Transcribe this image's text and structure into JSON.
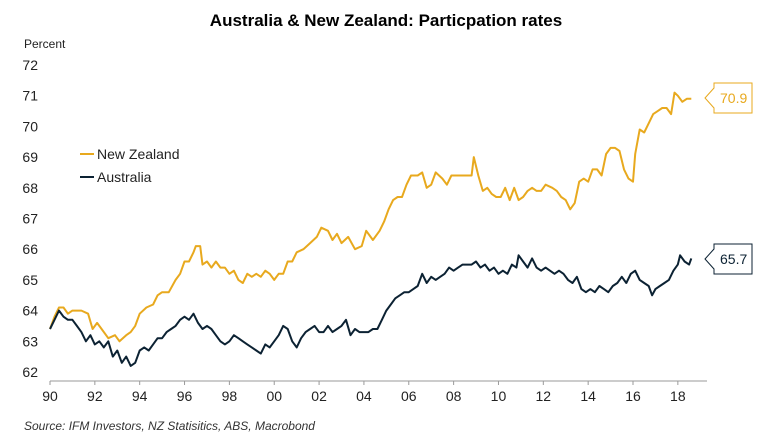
{
  "chart_data": {
    "type": "line",
    "title": "Australia & New Zealand: Particpation rates",
    "ylabel": "Percent",
    "xlabel": "",
    "ylim": [
      62,
      72
    ],
    "xlim": [
      1990,
      2019.3
    ],
    "yticks": [
      62,
      63,
      64,
      65,
      66,
      67,
      68,
      69,
      70,
      71,
      72
    ],
    "xticks": [
      {
        "value": 1990,
        "label": "90"
      },
      {
        "value": 1992,
        "label": "92"
      },
      {
        "value": 1994,
        "label": "94"
      },
      {
        "value": 1996,
        "label": "96"
      },
      {
        "value": 1998,
        "label": "98"
      },
      {
        "value": 2000,
        "label": "00"
      },
      {
        "value": 2002,
        "label": "02"
      },
      {
        "value": 2004,
        "label": "04"
      },
      {
        "value": 2006,
        "label": "06"
      },
      {
        "value": 2008,
        "label": "08"
      },
      {
        "value": 2010,
        "label": "10"
      },
      {
        "value": 2012,
        "label": "12"
      },
      {
        "value": 2014,
        "label": "14"
      },
      {
        "value": 2016,
        "label": "16"
      },
      {
        "value": 2018,
        "label": "18"
      }
    ],
    "legend_position": "left",
    "series": [
      {
        "name": "New Zealand",
        "color": "#E8A91E",
        "latest_label": "70.9",
        "points": [
          [
            1990.0,
            63.4
          ],
          [
            1990.2,
            63.8
          ],
          [
            1990.4,
            64.1
          ],
          [
            1990.6,
            64.1
          ],
          [
            1990.8,
            63.9
          ],
          [
            1991.0,
            64.0
          ],
          [
            1991.4,
            64.0
          ],
          [
            1991.7,
            63.9
          ],
          [
            1991.9,
            63.4
          ],
          [
            1992.1,
            63.6
          ],
          [
            1992.3,
            63.4
          ],
          [
            1992.6,
            63.1
          ],
          [
            1992.9,
            63.2
          ],
          [
            1993.1,
            63.0
          ],
          [
            1993.4,
            63.2
          ],
          [
            1993.6,
            63.3
          ],
          [
            1993.8,
            63.5
          ],
          [
            1994.0,
            63.9
          ],
          [
            1994.3,
            64.1
          ],
          [
            1994.6,
            64.2
          ],
          [
            1994.8,
            64.5
          ],
          [
            1995.0,
            64.6
          ],
          [
            1995.3,
            64.6
          ],
          [
            1995.6,
            65.0
          ],
          [
            1995.8,
            65.2
          ],
          [
            1996.0,
            65.6
          ],
          [
            1996.2,
            65.6
          ],
          [
            1996.4,
            65.9
          ],
          [
            1996.5,
            66.1
          ],
          [
            1996.7,
            66.1
          ],
          [
            1996.8,
            65.5
          ],
          [
            1997.0,
            65.6
          ],
          [
            1997.2,
            65.4
          ],
          [
            1997.4,
            65.6
          ],
          [
            1997.6,
            65.4
          ],
          [
            1997.8,
            65.4
          ],
          [
            1998.0,
            65.2
          ],
          [
            1998.2,
            65.3
          ],
          [
            1998.4,
            65.0
          ],
          [
            1998.6,
            64.9
          ],
          [
            1998.8,
            65.2
          ],
          [
            1999.0,
            65.1
          ],
          [
            1999.2,
            65.2
          ],
          [
            1999.4,
            65.1
          ],
          [
            1999.6,
            65.3
          ],
          [
            1999.8,
            65.2
          ],
          [
            2000.0,
            65.0
          ],
          [
            2000.2,
            65.2
          ],
          [
            2000.4,
            65.2
          ],
          [
            2000.6,
            65.6
          ],
          [
            2000.8,
            65.6
          ],
          [
            2001.0,
            65.9
          ],
          [
            2001.3,
            66.0
          ],
          [
            2001.6,
            66.2
          ],
          [
            2001.9,
            66.4
          ],
          [
            2002.1,
            66.7
          ],
          [
            2002.4,
            66.6
          ],
          [
            2002.6,
            66.3
          ],
          [
            2002.8,
            66.5
          ],
          [
            2003.0,
            66.2
          ],
          [
            2003.3,
            66.4
          ],
          [
            2003.6,
            66.0
          ],
          [
            2003.9,
            66.1
          ],
          [
            2004.1,
            66.6
          ],
          [
            2004.4,
            66.3
          ],
          [
            2004.7,
            66.6
          ],
          [
            2004.9,
            66.9
          ],
          [
            2005.1,
            67.3
          ],
          [
            2005.3,
            67.6
          ],
          [
            2005.5,
            67.7
          ],
          [
            2005.7,
            67.7
          ],
          [
            2005.9,
            68.1
          ],
          [
            2006.1,
            68.4
          ],
          [
            2006.4,
            68.4
          ],
          [
            2006.6,
            68.5
          ],
          [
            2006.8,
            68.0
          ],
          [
            2007.0,
            68.1
          ],
          [
            2007.2,
            68.5
          ],
          [
            2007.5,
            68.3
          ],
          [
            2007.7,
            68.1
          ],
          [
            2007.9,
            68.4
          ],
          [
            2008.2,
            68.4
          ],
          [
            2008.5,
            68.4
          ],
          [
            2008.8,
            68.4
          ],
          [
            2008.9,
            69.0
          ],
          [
            2009.1,
            68.4
          ],
          [
            2009.3,
            67.9
          ],
          [
            2009.5,
            68.0
          ],
          [
            2009.7,
            67.8
          ],
          [
            2009.9,
            67.7
          ],
          [
            2010.1,
            67.7
          ],
          [
            2010.3,
            68.0
          ],
          [
            2010.5,
            67.6
          ],
          [
            2010.7,
            68.0
          ],
          [
            2010.9,
            67.6
          ],
          [
            2011.1,
            67.7
          ],
          [
            2011.3,
            67.9
          ],
          [
            2011.5,
            68.0
          ],
          [
            2011.7,
            67.9
          ],
          [
            2011.9,
            67.9
          ],
          [
            2012.1,
            68.1
          ],
          [
            2012.4,
            68.0
          ],
          [
            2012.6,
            67.9
          ],
          [
            2012.8,
            67.7
          ],
          [
            2013.0,
            67.6
          ],
          [
            2013.2,
            67.3
          ],
          [
            2013.4,
            67.5
          ],
          [
            2013.6,
            68.2
          ],
          [
            2013.8,
            68.3
          ],
          [
            2014.0,
            68.2
          ],
          [
            2014.2,
            68.6
          ],
          [
            2014.4,
            68.6
          ],
          [
            2014.6,
            68.4
          ],
          [
            2014.8,
            69.1
          ],
          [
            2015.0,
            69.3
          ],
          [
            2015.2,
            69.3
          ],
          [
            2015.4,
            69.2
          ],
          [
            2015.6,
            68.6
          ],
          [
            2015.8,
            68.3
          ],
          [
            2016.0,
            68.2
          ],
          [
            2016.1,
            69.1
          ],
          [
            2016.3,
            69.9
          ],
          [
            2016.5,
            69.8
          ],
          [
            2016.7,
            70.1
          ],
          [
            2016.9,
            70.4
          ],
          [
            2017.1,
            70.5
          ],
          [
            2017.3,
            70.6
          ],
          [
            2017.5,
            70.6
          ],
          [
            2017.7,
            70.4
          ],
          [
            2017.85,
            71.1
          ],
          [
            2018.0,
            71.0
          ],
          [
            2018.2,
            70.8
          ],
          [
            2018.4,
            70.9
          ],
          [
            2018.6,
            70.9
          ]
        ]
      },
      {
        "name": "Australia",
        "color": "#0C2233",
        "latest_label": "65.7",
        "points": [
          [
            1990.0,
            63.4
          ],
          [
            1990.2,
            63.7
          ],
          [
            1990.4,
            64.0
          ],
          [
            1990.6,
            63.8
          ],
          [
            1990.8,
            63.7
          ],
          [
            1991.0,
            63.7
          ],
          [
            1991.2,
            63.5
          ],
          [
            1991.4,
            63.3
          ],
          [
            1991.6,
            63.0
          ],
          [
            1991.8,
            63.2
          ],
          [
            1992.0,
            62.9
          ],
          [
            1992.2,
            63.0
          ],
          [
            1992.4,
            62.8
          ],
          [
            1992.6,
            63.0
          ],
          [
            1992.8,
            62.5
          ],
          [
            1993.0,
            62.7
          ],
          [
            1993.2,
            62.3
          ],
          [
            1993.4,
            62.5
          ],
          [
            1993.6,
            62.2
          ],
          [
            1993.8,
            62.3
          ],
          [
            1994.0,
            62.7
          ],
          [
            1994.2,
            62.8
          ],
          [
            1994.4,
            62.7
          ],
          [
            1994.6,
            62.9
          ],
          [
            1994.8,
            63.1
          ],
          [
            1995.0,
            63.1
          ],
          [
            1995.2,
            63.3
          ],
          [
            1995.4,
            63.4
          ],
          [
            1995.6,
            63.5
          ],
          [
            1995.8,
            63.7
          ],
          [
            1996.0,
            63.8
          ],
          [
            1996.2,
            63.7
          ],
          [
            1996.4,
            63.9
          ],
          [
            1996.6,
            63.6
          ],
          [
            1996.8,
            63.4
          ],
          [
            1997.0,
            63.5
          ],
          [
            1997.2,
            63.4
          ],
          [
            1997.4,
            63.2
          ],
          [
            1997.6,
            63.0
          ],
          [
            1997.8,
            62.9
          ],
          [
            1998.0,
            63.0
          ],
          [
            1998.2,
            63.2
          ],
          [
            1998.4,
            63.1
          ],
          [
            1998.6,
            63.0
          ],
          [
            1998.8,
            62.9
          ],
          [
            1999.0,
            62.8
          ],
          [
            1999.2,
            62.7
          ],
          [
            1999.4,
            62.6
          ],
          [
            1999.6,
            62.9
          ],
          [
            1999.8,
            62.8
          ],
          [
            2000.0,
            63.0
          ],
          [
            2000.2,
            63.2
          ],
          [
            2000.4,
            63.5
          ],
          [
            2000.6,
            63.4
          ],
          [
            2000.8,
            63.0
          ],
          [
            2001.0,
            62.8
          ],
          [
            2001.2,
            63.1
          ],
          [
            2001.4,
            63.3
          ],
          [
            2001.6,
            63.4
          ],
          [
            2001.8,
            63.5
          ],
          [
            2002.0,
            63.3
          ],
          [
            2002.2,
            63.3
          ],
          [
            2002.4,
            63.5
          ],
          [
            2002.6,
            63.3
          ],
          [
            2002.8,
            63.4
          ],
          [
            2003.0,
            63.5
          ],
          [
            2003.2,
            63.7
          ],
          [
            2003.4,
            63.2
          ],
          [
            2003.6,
            63.4
          ],
          [
            2003.8,
            63.3
          ],
          [
            2004.0,
            63.3
          ],
          [
            2004.2,
            63.3
          ],
          [
            2004.4,
            63.4
          ],
          [
            2004.6,
            63.4
          ],
          [
            2004.8,
            63.7
          ],
          [
            2005.0,
            64.0
          ],
          [
            2005.2,
            64.2
          ],
          [
            2005.4,
            64.4
          ],
          [
            2005.6,
            64.5
          ],
          [
            2005.8,
            64.6
          ],
          [
            2006.0,
            64.6
          ],
          [
            2006.2,
            64.7
          ],
          [
            2006.4,
            64.8
          ],
          [
            2006.6,
            65.2
          ],
          [
            2006.8,
            64.9
          ],
          [
            2007.0,
            65.1
          ],
          [
            2007.2,
            65.0
          ],
          [
            2007.4,
            65.1
          ],
          [
            2007.6,
            65.2
          ],
          [
            2007.8,
            65.4
          ],
          [
            2008.0,
            65.3
          ],
          [
            2008.2,
            65.4
          ],
          [
            2008.4,
            65.5
          ],
          [
            2008.6,
            65.5
          ],
          [
            2008.8,
            65.5
          ],
          [
            2009.0,
            65.6
          ],
          [
            2009.2,
            65.4
          ],
          [
            2009.4,
            65.5
          ],
          [
            2009.6,
            65.3
          ],
          [
            2009.8,
            65.4
          ],
          [
            2010.0,
            65.2
          ],
          [
            2010.2,
            65.3
          ],
          [
            2010.4,
            65.2
          ],
          [
            2010.6,
            65.5
          ],
          [
            2010.8,
            65.4
          ],
          [
            2010.9,
            65.8
          ],
          [
            2011.1,
            65.6
          ],
          [
            2011.3,
            65.4
          ],
          [
            2011.5,
            65.7
          ],
          [
            2011.7,
            65.4
          ],
          [
            2011.9,
            65.3
          ],
          [
            2012.1,
            65.4
          ],
          [
            2012.3,
            65.3
          ],
          [
            2012.5,
            65.2
          ],
          [
            2012.7,
            65.3
          ],
          [
            2012.9,
            65.2
          ],
          [
            2013.1,
            65.0
          ],
          [
            2013.3,
            64.9
          ],
          [
            2013.5,
            65.1
          ],
          [
            2013.7,
            64.7
          ],
          [
            2013.9,
            64.6
          ],
          [
            2014.1,
            64.7
          ],
          [
            2014.3,
            64.6
          ],
          [
            2014.5,
            64.8
          ],
          [
            2014.7,
            64.7
          ],
          [
            2014.9,
            64.6
          ],
          [
            2015.1,
            64.8
          ],
          [
            2015.3,
            64.9
          ],
          [
            2015.5,
            65.1
          ],
          [
            2015.7,
            64.9
          ],
          [
            2015.9,
            65.2
          ],
          [
            2016.1,
            65.3
          ],
          [
            2016.3,
            65.0
          ],
          [
            2016.5,
            64.9
          ],
          [
            2016.7,
            64.8
          ],
          [
            2016.85,
            64.5
          ],
          [
            2017.0,
            64.7
          ],
          [
            2017.2,
            64.8
          ],
          [
            2017.4,
            64.9
          ],
          [
            2017.6,
            65.0
          ],
          [
            2017.8,
            65.3
          ],
          [
            2018.0,
            65.5
          ],
          [
            2018.1,
            65.8
          ],
          [
            2018.3,
            65.6
          ],
          [
            2018.5,
            65.5
          ],
          [
            2018.6,
            65.7
          ]
        ]
      }
    ]
  },
  "source": "Source: IFM Investors, NZ Statisitics, ABS, Macrobond"
}
